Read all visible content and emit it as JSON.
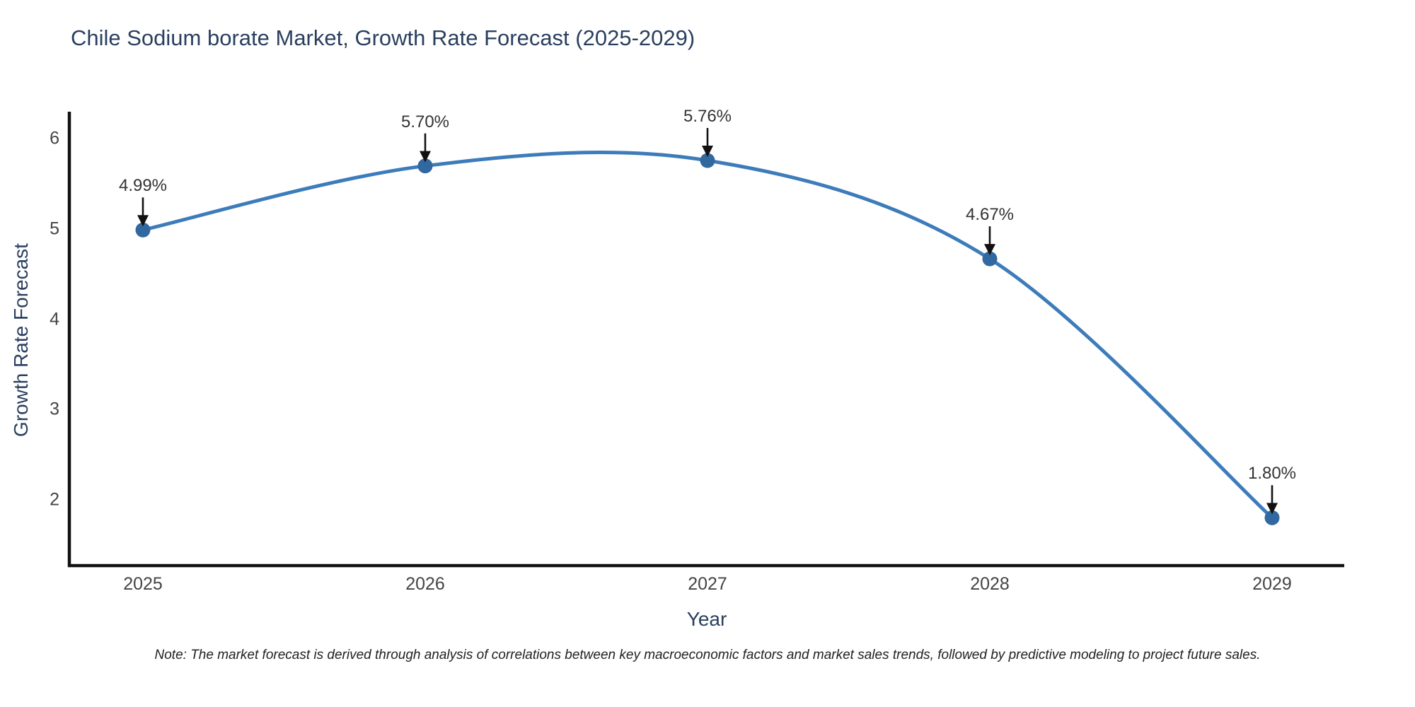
{
  "title": "Chile Sodium borate Market, Growth Rate Forecast (2025-2029)",
  "note": "Note: The market forecast is derived through analysis of correlations between key macroeconomic factors and market sales trends, followed by predictive modeling to project future sales.",
  "chart_data": {
    "type": "line",
    "title": "Chile Sodium borate Market, Growth Rate Forecast (2025-2029)",
    "xlabel": "Year",
    "ylabel": "Growth Rate Forecast",
    "x": [
      2025,
      2026,
      2027,
      2028,
      2029
    ],
    "values": [
      4.99,
      5.7,
      5.76,
      4.67,
      1.8
    ],
    "point_labels": [
      "4.99%",
      "5.70%",
      "5.76%",
      "4.67%",
      "1.80%"
    ],
    "yticks": [
      6,
      5,
      4,
      3,
      2
    ],
    "xticks": [
      "2025",
      "2026",
      "2027",
      "2028",
      "2029"
    ],
    "ylim": [
      1.27,
      6.3
    ],
    "xlim": [
      2024.74,
      2029.26
    ],
    "line_shape": "spline",
    "markers": true,
    "annotation_arrows": true,
    "grid": false,
    "legend_position": "none",
    "colors": {
      "line": "#3d7cba",
      "marker": "#31689f",
      "arrow": "#111111",
      "axis": "#111111",
      "title": "#2a3f5f",
      "tick_label": "#444444",
      "annotation": "#333333",
      "note": "#222222",
      "background": "#ffffff"
    }
  }
}
